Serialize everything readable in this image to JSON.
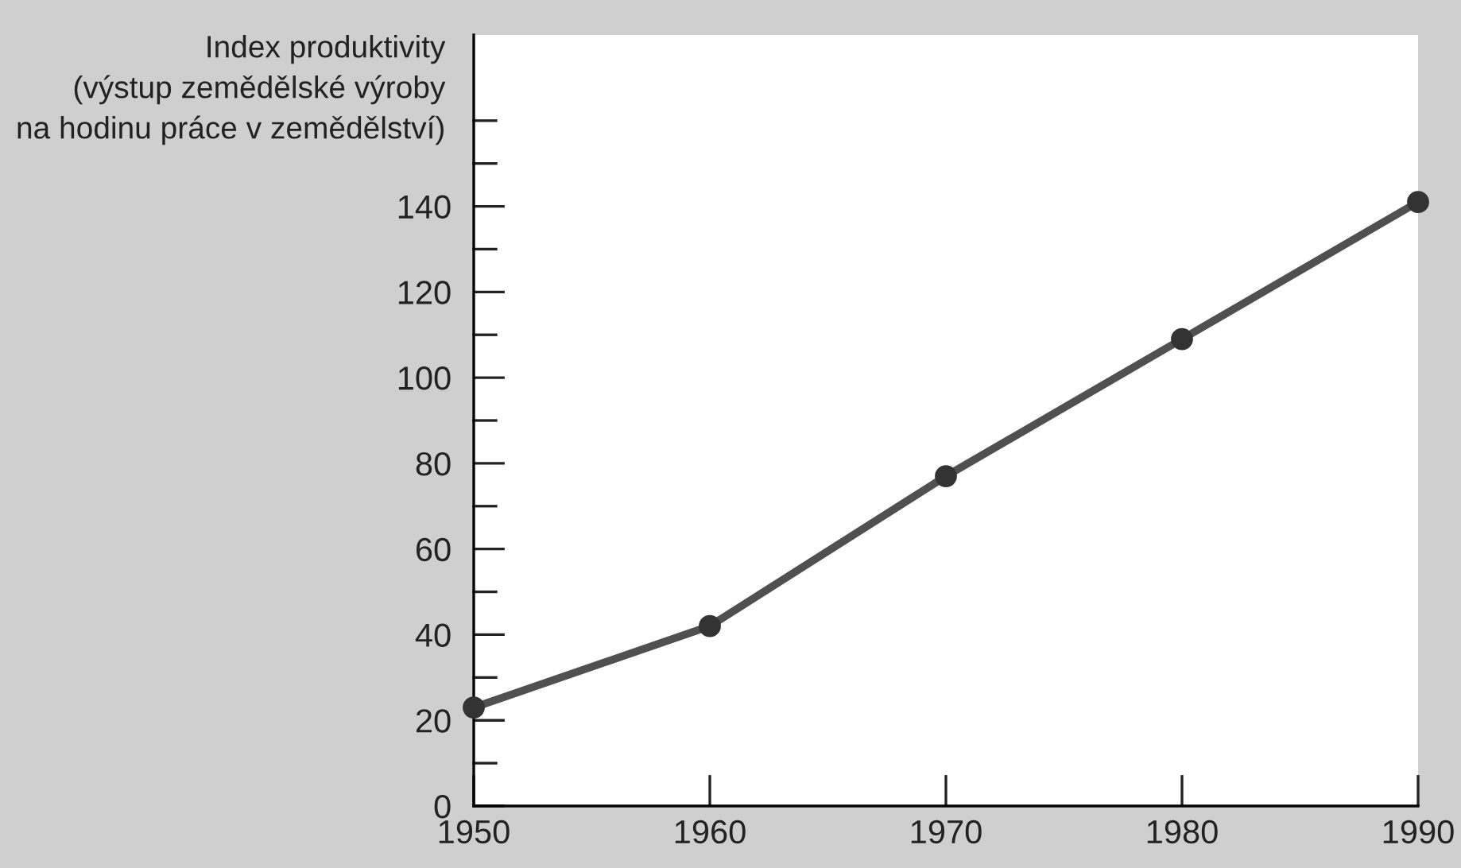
{
  "chart_data": {
    "type": "line",
    "ylabel": "Index produktivity\n(výstup zemědělské výroby\nna hodinu práce v zemědělství)",
    "x": [
      1950,
      1960,
      1970,
      1980,
      1990
    ],
    "series": [
      {
        "color": "#505050",
        "values": [
          23,
          42,
          77,
          109,
          141
        ]
      }
    ],
    "marker": "circle",
    "line_style": "solid",
    "grid": false,
    "legend": false,
    "xlim": [
      1950,
      1990
    ],
    "xticks": [
      1950,
      1960,
      1970,
      1980,
      1990
    ],
    "ylim": [
      0,
      180
    ],
    "yticks": [
      0,
      {
        "value": 10,
        "label": null
      },
      20,
      {
        "value": 30,
        "label": null
      },
      40,
      {
        "value": 50,
        "label": null
      },
      60,
      {
        "value": 70,
        "label": null
      },
      80,
      {
        "value": 90,
        "label": null
      },
      100,
      {
        "value": 110,
        "label": null
      },
      120,
      {
        "value": 130,
        "label": null
      },
      140,
      {
        "value": 150,
        "label": null
      },
      {
        "value": 160,
        "label": null
      }
    ]
  }
}
